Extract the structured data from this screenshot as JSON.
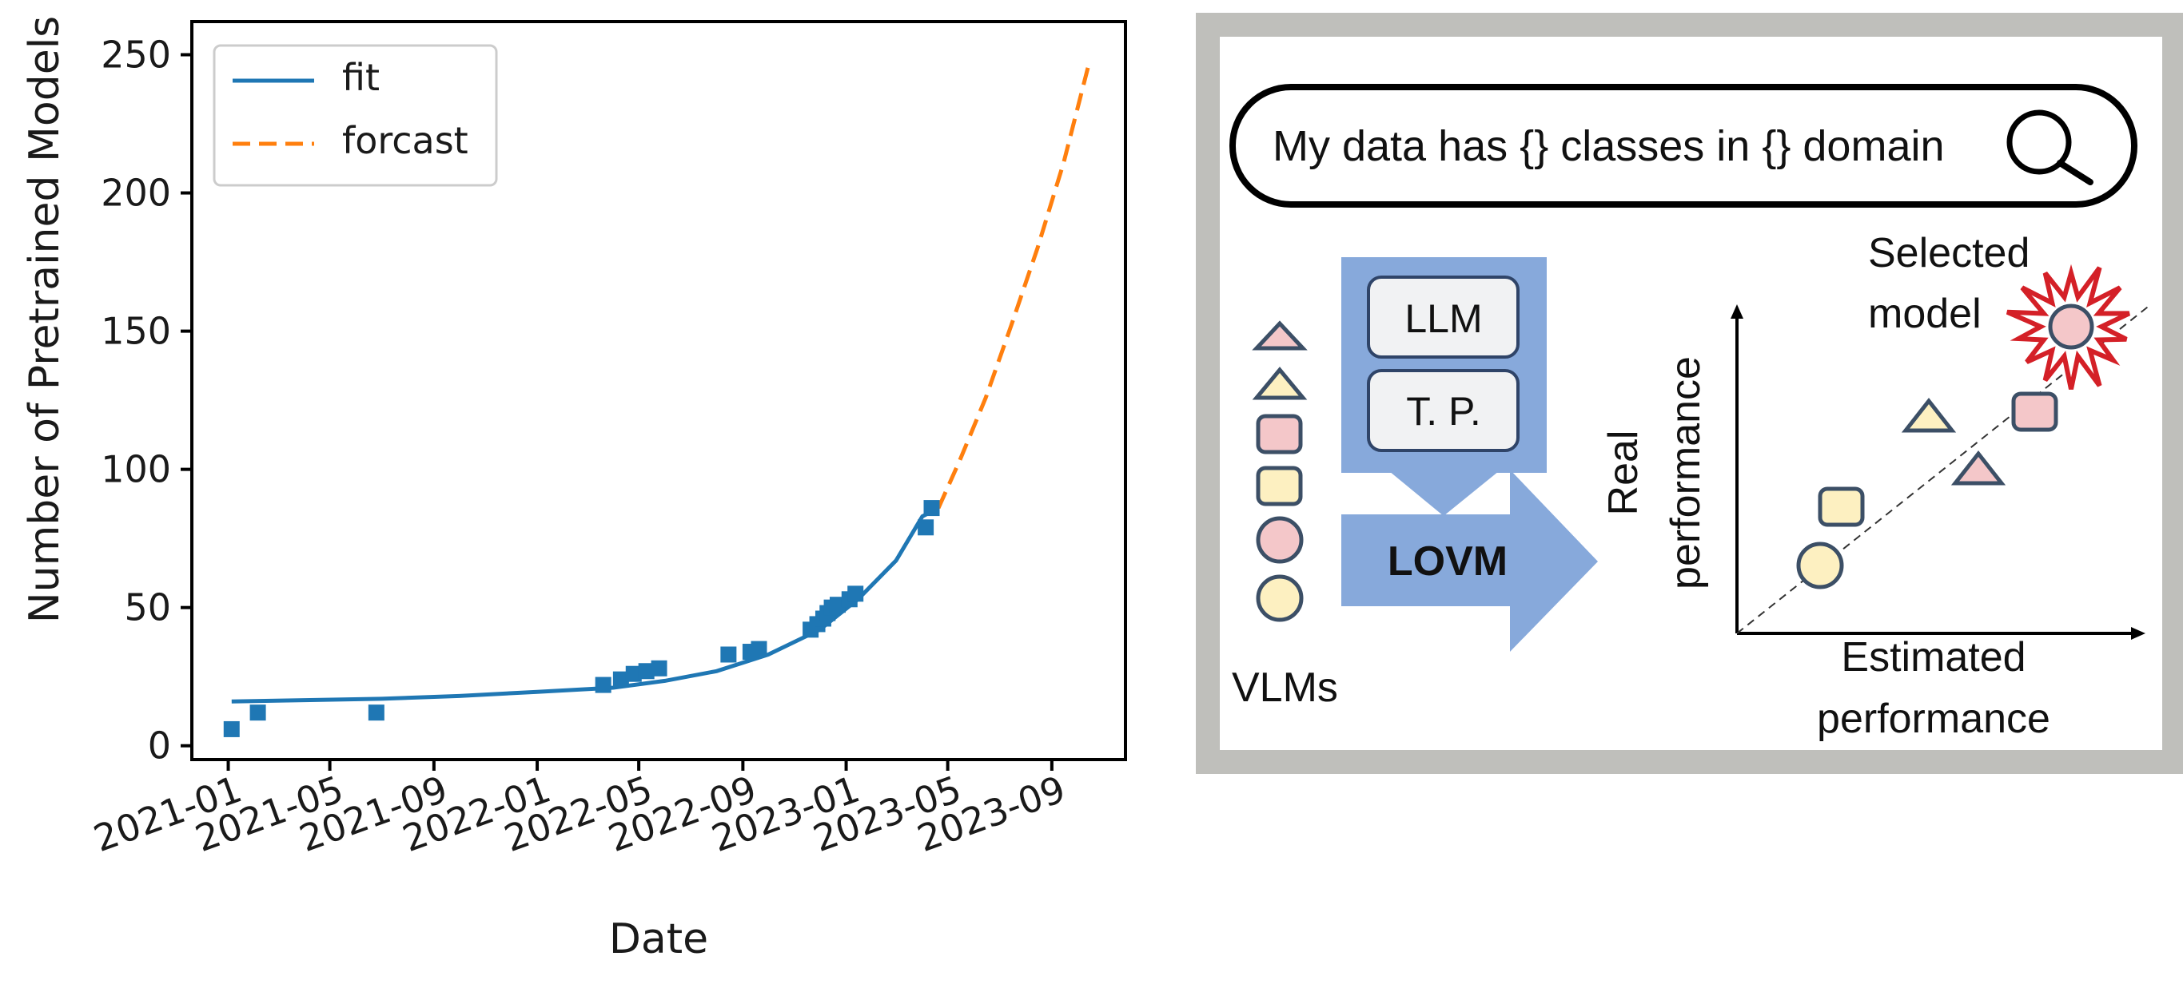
{
  "chart_data": {
    "type": "line",
    "xlabel": "Date",
    "ylabel": "Number of Pretrained Models",
    "ylim": [
      -5,
      262
    ],
    "xlim": [
      "2020-11-19",
      "2023-11-27"
    ],
    "y_ticks": [
      0,
      50,
      100,
      150,
      200,
      250
    ],
    "x_ticks": [
      "2021-01",
      "2021-05",
      "2021-09",
      "2022-01",
      "2022-05",
      "2022-09",
      "2023-01",
      "2023-05",
      "2023-09"
    ],
    "legend_position": "top-left",
    "grid": false,
    "colors": {
      "fit": "#1f77b4",
      "forcast": "#ff7f0e"
    },
    "series": [
      {
        "name": "fit",
        "style": "solid",
        "points": [
          [
            "2021-01-05",
            16
          ],
          [
            "2021-04-01",
            16.5
          ],
          [
            "2021-07-01",
            17
          ],
          [
            "2021-10-01",
            18
          ],
          [
            "2022-01-01",
            19.5
          ],
          [
            "2022-04-01",
            21
          ],
          [
            "2022-06-01",
            23.5
          ],
          [
            "2022-08-01",
            27
          ],
          [
            "2022-10-01",
            33
          ],
          [
            "2022-12-01",
            42
          ],
          [
            "2023-01-15",
            53
          ],
          [
            "2023-03-01",
            67
          ],
          [
            "2023-04-01",
            83
          ],
          [
            "2023-04-20",
            86
          ]
        ]
      },
      {
        "name": "forcast",
        "style": "dashed",
        "points": [
          [
            "2023-04-20",
            86
          ],
          [
            "2023-05-15",
            103
          ],
          [
            "2023-06-15",
            126
          ],
          [
            "2023-07-15",
            152
          ],
          [
            "2023-08-15",
            180
          ],
          [
            "2023-09-15",
            211
          ],
          [
            "2023-10-15",
            247
          ]
        ]
      },
      {
        "name": "",
        "style": "markers",
        "points": [
          [
            "2021-01-05",
            6
          ],
          [
            "2021-02-05",
            12
          ],
          [
            "2021-06-25",
            12
          ],
          [
            "2022-03-20",
            22
          ],
          [
            "2022-04-10",
            24
          ],
          [
            "2022-04-25",
            26
          ],
          [
            "2022-05-10",
            27
          ],
          [
            "2022-05-25",
            28
          ],
          [
            "2022-08-15",
            33
          ],
          [
            "2022-09-10",
            34
          ],
          [
            "2022-09-20",
            35
          ],
          [
            "2022-11-20",
            42
          ],
          [
            "2022-11-28",
            44
          ],
          [
            "2022-12-05",
            46
          ],
          [
            "2022-12-10",
            48
          ],
          [
            "2022-12-15",
            50
          ],
          [
            "2022-12-22",
            51
          ],
          [
            "2023-01-05",
            53
          ],
          [
            "2023-01-12",
            55
          ],
          [
            "2023-04-05",
            79
          ],
          [
            "2023-04-12",
            86
          ]
        ]
      }
    ]
  },
  "diagram": {
    "search_text": "My data has {} classes in {} domain",
    "llm_label": "LLM",
    "tp_label": "T. P.",
    "lovm_label": "LOVM",
    "vlms_label": "VLMs",
    "selected_label_line1": "Selected",
    "selected_label_line2": "model",
    "y_axis_line1": "Real",
    "y_axis_line2": "performance",
    "x_axis_line1": "Estimated",
    "x_axis_line2": "performance",
    "colors": {
      "pink": "#f4c7c9",
      "yellow": "#fdf0c1",
      "blue": "#87a9db",
      "frame": "#bfbfbb",
      "burst": "#d42027"
    }
  }
}
